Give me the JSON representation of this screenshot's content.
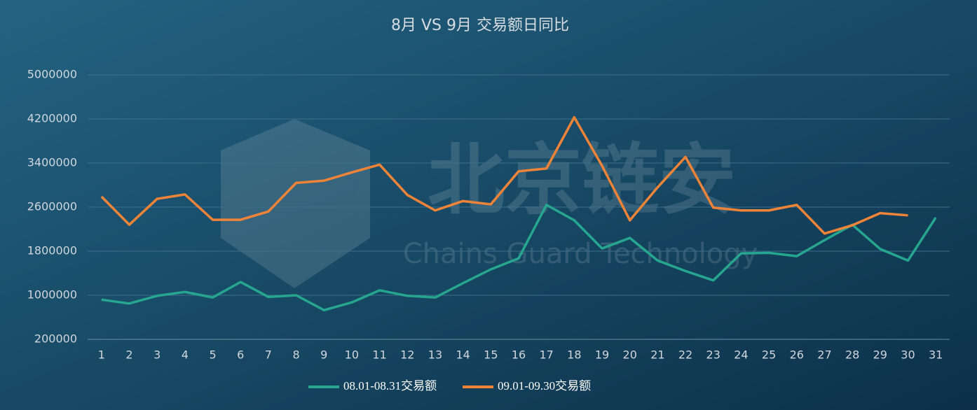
{
  "chart_data": {
    "type": "line",
    "title": "8月 VS 9月 交易额日同比",
    "watermark": [
      "北京链安",
      "Chains Guard Technology"
    ],
    "categories": [
      "1",
      "2",
      "3",
      "4",
      "5",
      "6",
      "7",
      "8",
      "9",
      "10",
      "11",
      "12",
      "13",
      "14",
      "15",
      "16",
      "17",
      "18",
      "19",
      "20",
      "21",
      "22",
      "23",
      "24",
      "25",
      "26",
      "27",
      "28",
      "29",
      "30",
      "31"
    ],
    "series": [
      {
        "name": "08.01-08.31交易额",
        "color": "#26a68f",
        "values": [
          920000,
          850000,
          990000,
          1060000,
          960000,
          1240000,
          970000,
          1000000,
          730000,
          870000,
          1090000,
          990000,
          960000,
          1220000,
          1470000,
          1670000,
          2640000,
          2360000,
          1850000,
          2040000,
          1630000,
          1440000,
          1270000,
          1760000,
          1770000,
          1710000,
          2000000,
          2280000,
          1840000,
          1630000,
          2410000
        ]
      },
      {
        "name": "09.01-09.30交易额",
        "color": "#ef8438",
        "values": [
          2790000,
          2280000,
          2750000,
          2830000,
          2370000,
          2370000,
          2520000,
          3040000,
          3080000,
          3230000,
          3370000,
          2820000,
          2540000,
          2710000,
          2650000,
          3250000,
          3300000,
          4230000,
          3350000,
          2360000,
          2960000,
          3510000,
          2590000,
          2540000,
          2540000,
          2640000,
          2120000,
          2270000,
          2490000,
          2450000,
          null
        ]
      }
    ],
    "ylim": [
      200000,
      5000000
    ],
    "yticks": [
      200000,
      1000000,
      1800000,
      2600000,
      3400000,
      4200000,
      5000000
    ],
    "grid": true
  }
}
